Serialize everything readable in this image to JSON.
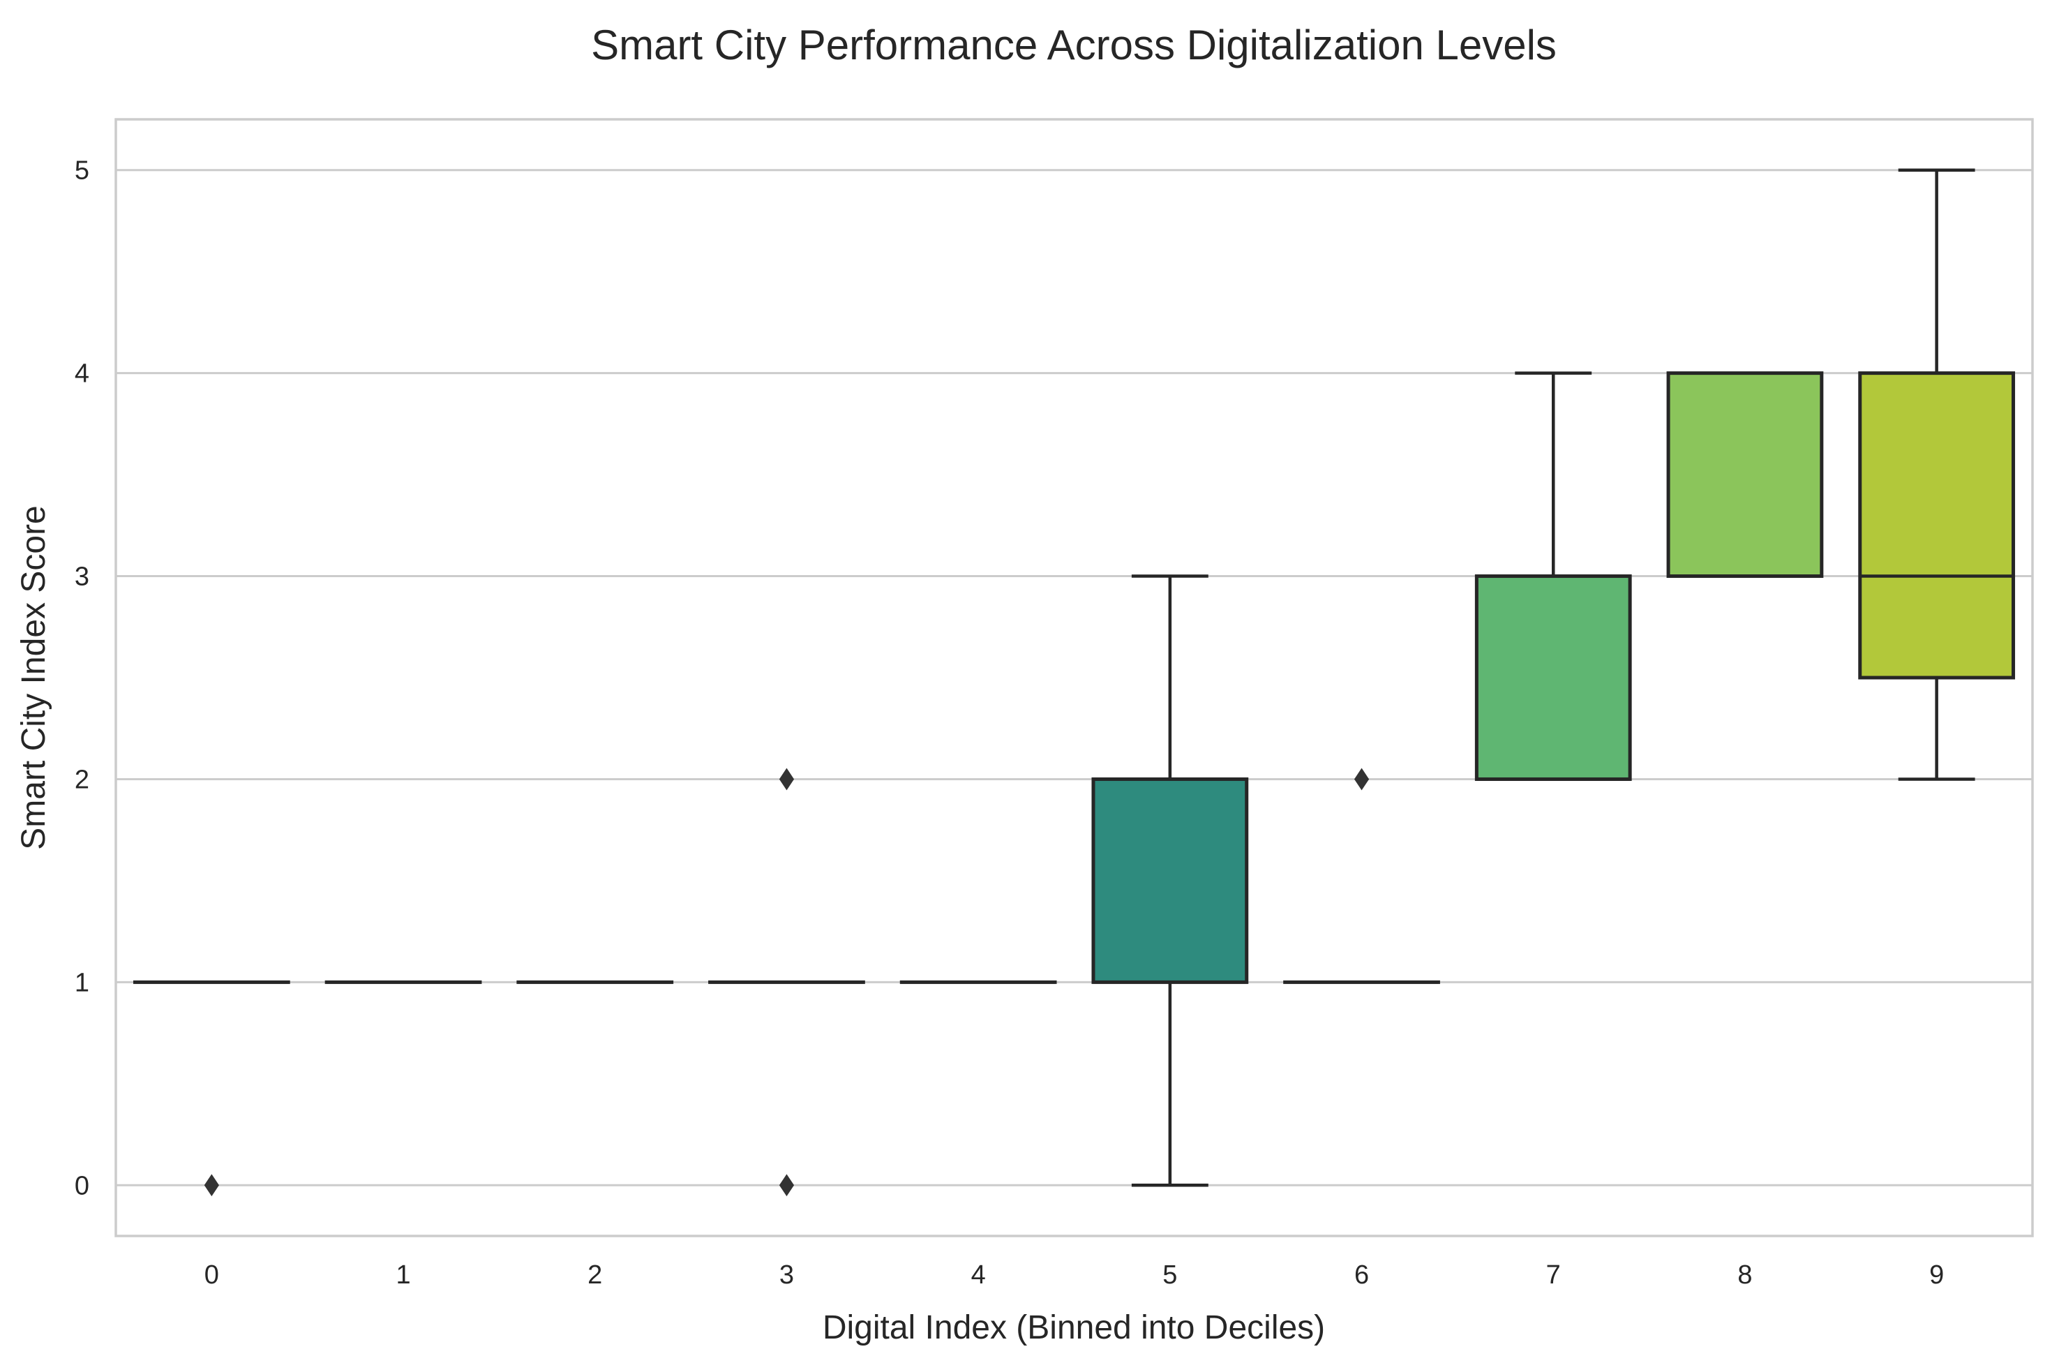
{
  "chart_data": {
    "type": "box",
    "title": "Smart City Performance Across Digitalization Levels",
    "xlabel": "Digital Index (Binned into Deciles)",
    "ylabel": "Smart City Index Score",
    "ylim": [
      -0.25,
      5.25
    ],
    "yticks": [
      "0",
      "1",
      "2",
      "3",
      "4",
      "5"
    ],
    "grid": "horizontal",
    "categories": [
      "0",
      "1",
      "2",
      "3",
      "4",
      "5",
      "6",
      "7",
      "8",
      "9"
    ],
    "boxes": [
      {
        "category": "0",
        "whislo": 1,
        "q1": 1,
        "med": 1,
        "q3": 1,
        "whishi": 1,
        "fliers": [
          0
        ],
        "color": "#440154"
      },
      {
        "category": "1",
        "whislo": 1,
        "q1": 1,
        "med": 1,
        "q3": 1,
        "whishi": 1,
        "fliers": [],
        "color": "#482878"
      },
      {
        "category": "2",
        "whislo": 1,
        "q1": 1,
        "med": 1,
        "q3": 1,
        "whishi": 1,
        "fliers": [],
        "color": "#3e4989"
      },
      {
        "category": "3",
        "whislo": 1,
        "q1": 1,
        "med": 1,
        "q3": 1,
        "whishi": 1,
        "fliers": [
          2,
          0
        ],
        "color": "#31688e"
      },
      {
        "category": "4",
        "whislo": 1,
        "q1": 1,
        "med": 1,
        "q3": 1,
        "whishi": 1,
        "fliers": [],
        "color": "#26828e"
      },
      {
        "category": "5",
        "whislo": 0,
        "q1": 1,
        "med": 1,
        "q3": 2,
        "whishi": 3,
        "fliers": [],
        "color": "#2e8b7e"
      },
      {
        "category": "6",
        "whislo": 1,
        "q1": 1,
        "med": 1,
        "q3": 1,
        "whishi": 1,
        "fliers": [
          2
        ],
        "color": "#35b779"
      },
      {
        "category": "7",
        "whislo": 2,
        "q1": 2,
        "med": 2,
        "q3": 3,
        "whishi": 4,
        "fliers": [],
        "color": "#5fb672"
      },
      {
        "category": "8",
        "whislo": 3,
        "q1": 3,
        "med": 3,
        "q3": 4,
        "whishi": 4,
        "fliers": [],
        "color": "#8bc55b"
      },
      {
        "category": "9",
        "whislo": 2,
        "q1": 2.5,
        "med": 3,
        "q3": 4,
        "whishi": 5,
        "fliers": [],
        "color": "#b2c83a"
      }
    ]
  }
}
